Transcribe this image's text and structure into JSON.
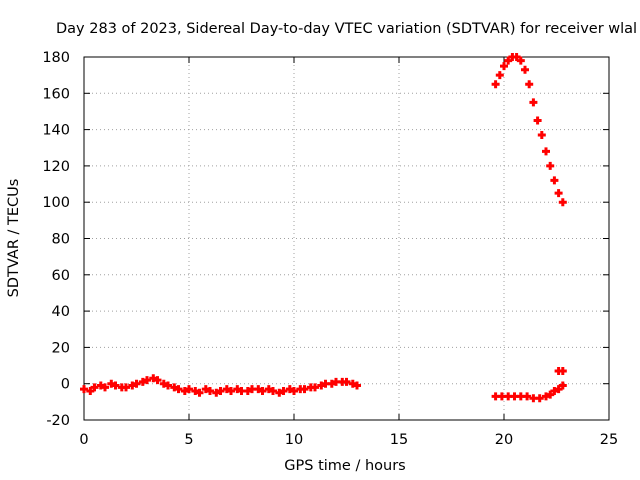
{
  "chart_data": {
    "type": "scatter",
    "title": "Day 283 of 2023, Sidereal Day-to-day VTEC variation (SDTVAR) for receiver wlal",
    "xlabel": "GPS time / hours",
    "ylabel": "SDTVAR / TECUs",
    "xlim": [
      0,
      25
    ],
    "ylim": [
      -20,
      180
    ],
    "xticks": [
      0,
      5,
      10,
      15,
      20,
      25
    ],
    "yticks": [
      -20,
      0,
      20,
      40,
      60,
      80,
      100,
      120,
      140,
      160,
      180
    ],
    "grid": true,
    "legend": "none",
    "series": [
      {
        "color": "#ff0000",
        "marker": "plus",
        "points": [
          [
            0.0,
            -3
          ],
          [
            0.3,
            -4
          ],
          [
            0.5,
            -2
          ],
          [
            0.8,
            -1
          ],
          [
            1.0,
            -2
          ],
          [
            1.3,
            0
          ],
          [
            1.5,
            -1
          ],
          [
            1.8,
            -2
          ],
          [
            2.0,
            -2
          ],
          [
            2.3,
            -1
          ],
          [
            2.5,
            0
          ],
          [
            2.8,
            1
          ],
          [
            3.0,
            2
          ],
          [
            3.3,
            3
          ],
          [
            3.5,
            2
          ],
          [
            3.8,
            0
          ],
          [
            4.0,
            -1
          ],
          [
            4.3,
            -2
          ],
          [
            4.5,
            -3
          ],
          [
            4.8,
            -4
          ],
          [
            5.0,
            -3
          ],
          [
            5.3,
            -4
          ],
          [
            5.5,
            -5
          ],
          [
            5.8,
            -3
          ],
          [
            6.0,
            -4
          ],
          [
            6.3,
            -5
          ],
          [
            6.5,
            -4
          ],
          [
            6.8,
            -3
          ],
          [
            7.0,
            -4
          ],
          [
            7.3,
            -3
          ],
          [
            7.5,
            -4
          ],
          [
            7.8,
            -4
          ],
          [
            8.0,
            -3
          ],
          [
            8.3,
            -3
          ],
          [
            8.5,
            -4
          ],
          [
            8.8,
            -3
          ],
          [
            9.0,
            -4
          ],
          [
            9.3,
            -5
          ],
          [
            9.5,
            -4
          ],
          [
            9.8,
            -3
          ],
          [
            10.0,
            -4
          ],
          [
            10.3,
            -3
          ],
          [
            10.5,
            -3
          ],
          [
            10.8,
            -2
          ],
          [
            11.0,
            -2
          ],
          [
            11.3,
            -1
          ],
          [
            11.5,
            0
          ],
          [
            11.8,
            0
          ],
          [
            12.0,
            1
          ],
          [
            12.3,
            1
          ],
          [
            12.5,
            1
          ],
          [
            12.8,
            0
          ],
          [
            13.0,
            -1
          ],
          [
            19.6,
            -7
          ],
          [
            19.9,
            -7
          ],
          [
            20.2,
            -7
          ],
          [
            20.5,
            -7
          ],
          [
            20.8,
            -7
          ],
          [
            21.1,
            -7
          ],
          [
            21.4,
            -8
          ],
          [
            21.7,
            -8
          ],
          [
            22.0,
            -7
          ],
          [
            22.2,
            -6
          ],
          [
            22.4,
            -4
          ],
          [
            22.6,
            -3
          ],
          [
            22.8,
            -1
          ],
          [
            22.6,
            7
          ],
          [
            22.8,
            7
          ],
          [
            19.6,
            165
          ],
          [
            19.8,
            170
          ],
          [
            20.0,
            175
          ],
          [
            20.2,
            178
          ],
          [
            20.4,
            180
          ],
          [
            20.6,
            180
          ],
          [
            20.8,
            178
          ],
          [
            21.0,
            173
          ],
          [
            21.2,
            165
          ],
          [
            21.4,
            155
          ],
          [
            21.6,
            145
          ],
          [
            21.8,
            137
          ],
          [
            22.0,
            128
          ],
          [
            22.2,
            120
          ],
          [
            22.4,
            112
          ],
          [
            22.6,
            105
          ],
          [
            22.8,
            100
          ]
        ]
      }
    ]
  }
}
